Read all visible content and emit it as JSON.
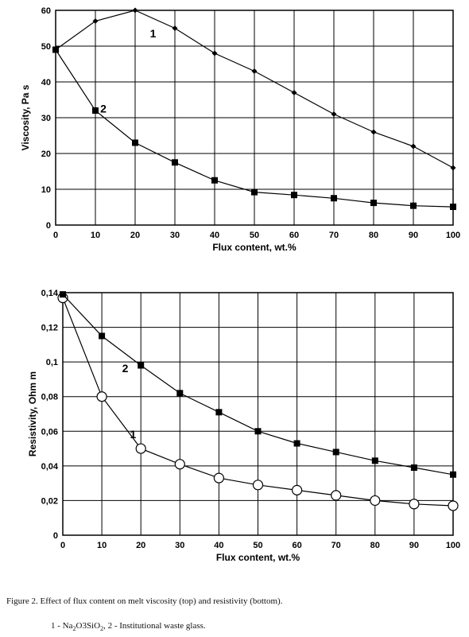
{
  "figure": {
    "caption": "Figure 2. Effect of flux content on melt viscosity (top) and resistivity (bottom).",
    "legend_prefix_1": "1 - Na",
    "legend_sub_1": "2",
    "legend_mid": "O3SiO",
    "legend_sub_2": "2",
    "legend_rest": ", 2 - Institutional waste glass."
  },
  "chart_data": [
    {
      "type": "line",
      "title": "",
      "xlabel": "Flux content, wt.%",
      "ylabel": "Viscosity, Pa s",
      "xlim": [
        0,
        100
      ],
      "ylim": [
        0,
        60
      ],
      "x_ticks": [
        "0",
        "10",
        "20",
        "30",
        "40",
        "50",
        "60",
        "70",
        "80",
        "90",
        "100"
      ],
      "y_ticks": [
        "0",
        "10",
        "20",
        "30",
        "40",
        "50",
        "60"
      ],
      "grid": true,
      "legend": "none",
      "x": [
        0,
        10,
        20,
        30,
        40,
        50,
        60,
        70,
        80,
        90,
        100
      ],
      "series": [
        {
          "name": "1",
          "marker": "diamond",
          "values": [
            49,
            57,
            60,
            55,
            48,
            43,
            37,
            31,
            26,
            22,
            16
          ]
        },
        {
          "name": "2",
          "marker": "square",
          "values": [
            49,
            32,
            23,
            17.5,
            12.5,
            9.2,
            8.4,
            7.5,
            6.2,
            5.4,
            5.1
          ]
        }
      ]
    },
    {
      "type": "line",
      "title": "",
      "xlabel": "Flux content, wt.%",
      "ylabel": "Resistivity, Ohm m",
      "xlim": [
        0,
        100
      ],
      "ylim": [
        0,
        0.14
      ],
      "x_ticks": [
        "0",
        "10",
        "20",
        "30",
        "40",
        "50",
        "60",
        "70",
        "80",
        "90",
        "100"
      ],
      "y_ticks": [
        "0",
        "0,02",
        "0,04",
        "0,06",
        "0,08",
        "0,1",
        "0,12",
        "0,14"
      ],
      "grid": true,
      "legend": "none",
      "x": [
        0,
        10,
        20,
        30,
        40,
        50,
        60,
        70,
        80,
        90,
        100
      ],
      "series": [
        {
          "name": "1",
          "marker": "circle",
          "values": [
            0.137,
            0.08,
            0.05,
            0.041,
            0.033,
            0.029,
            0.026,
            0.023,
            0.02,
            0.018,
            0.017
          ]
        },
        {
          "name": "2",
          "marker": "square",
          "values": [
            0.139,
            0.115,
            0.098,
            0.082,
            0.071,
            0.06,
            0.053,
            0.048,
            0.043,
            0.039,
            0.035
          ]
        }
      ]
    }
  ]
}
